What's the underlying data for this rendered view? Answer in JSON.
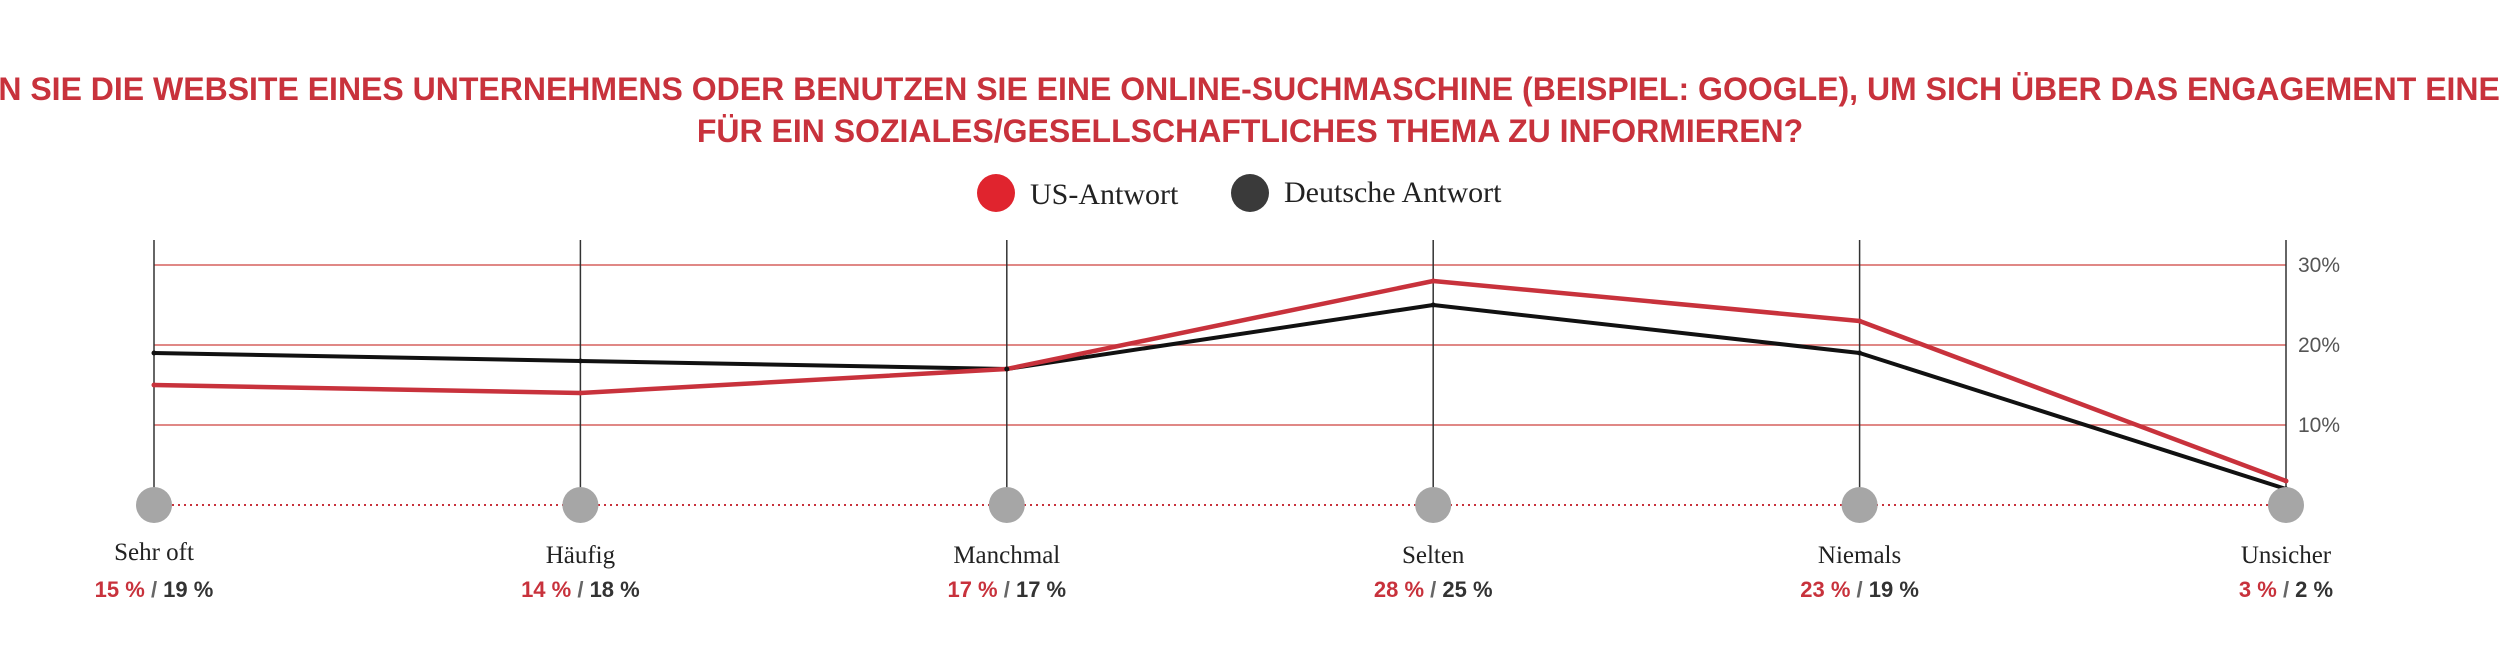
{
  "chart_data": {
    "type": "line",
    "title_lines": [
      "WIE OFT BESUCHEN SIE DIE WEBSITE EINES UNTERNEHMENS ODER BENUTZEN SIE EINE ONLINE-SUCHMASCHINE (BEISPIEL: GOOGLE), UM SICH ÜBER DAS ENGAGEMENT EINES UNTERNEHMENS",
      "FÜR EIN SOZIALES/GESELLSCHAFTLICHES THEMA ZU INFORMIEREN?"
    ],
    "categories": [
      "Sehr oft",
      "Häufig",
      "Manchmal",
      "Selten",
      "Niemals",
      "Unsicher"
    ],
    "series": [
      {
        "name": "US-Antwort",
        "color": "#c8323c",
        "values": [
          15,
          14,
          17,
          28,
          23,
          3
        ],
        "labels": [
          "15 %",
          "14 %",
          "17 %",
          "28 %",
          "23 %",
          "3 %"
        ]
      },
      {
        "name": "Deutsche Antwort",
        "color": "#111111",
        "values": [
          19,
          18,
          17,
          25,
          19,
          2
        ],
        "labels": [
          "19 %",
          "18 %",
          "17 %",
          "25 %",
          "19 %",
          "2 %"
        ]
      }
    ],
    "label_separator": "/",
    "yticks": [
      {
        "value": 10,
        "label": "10%"
      },
      {
        "value": 20,
        "label": "20%"
      },
      {
        "value": 30,
        "label": "30%"
      }
    ],
    "ylim": [
      0,
      33
    ],
    "grid": true,
    "legend_position": "top-center",
    "legend_dot_colors": [
      "#e0242e",
      "#3a3a3a"
    ]
  }
}
